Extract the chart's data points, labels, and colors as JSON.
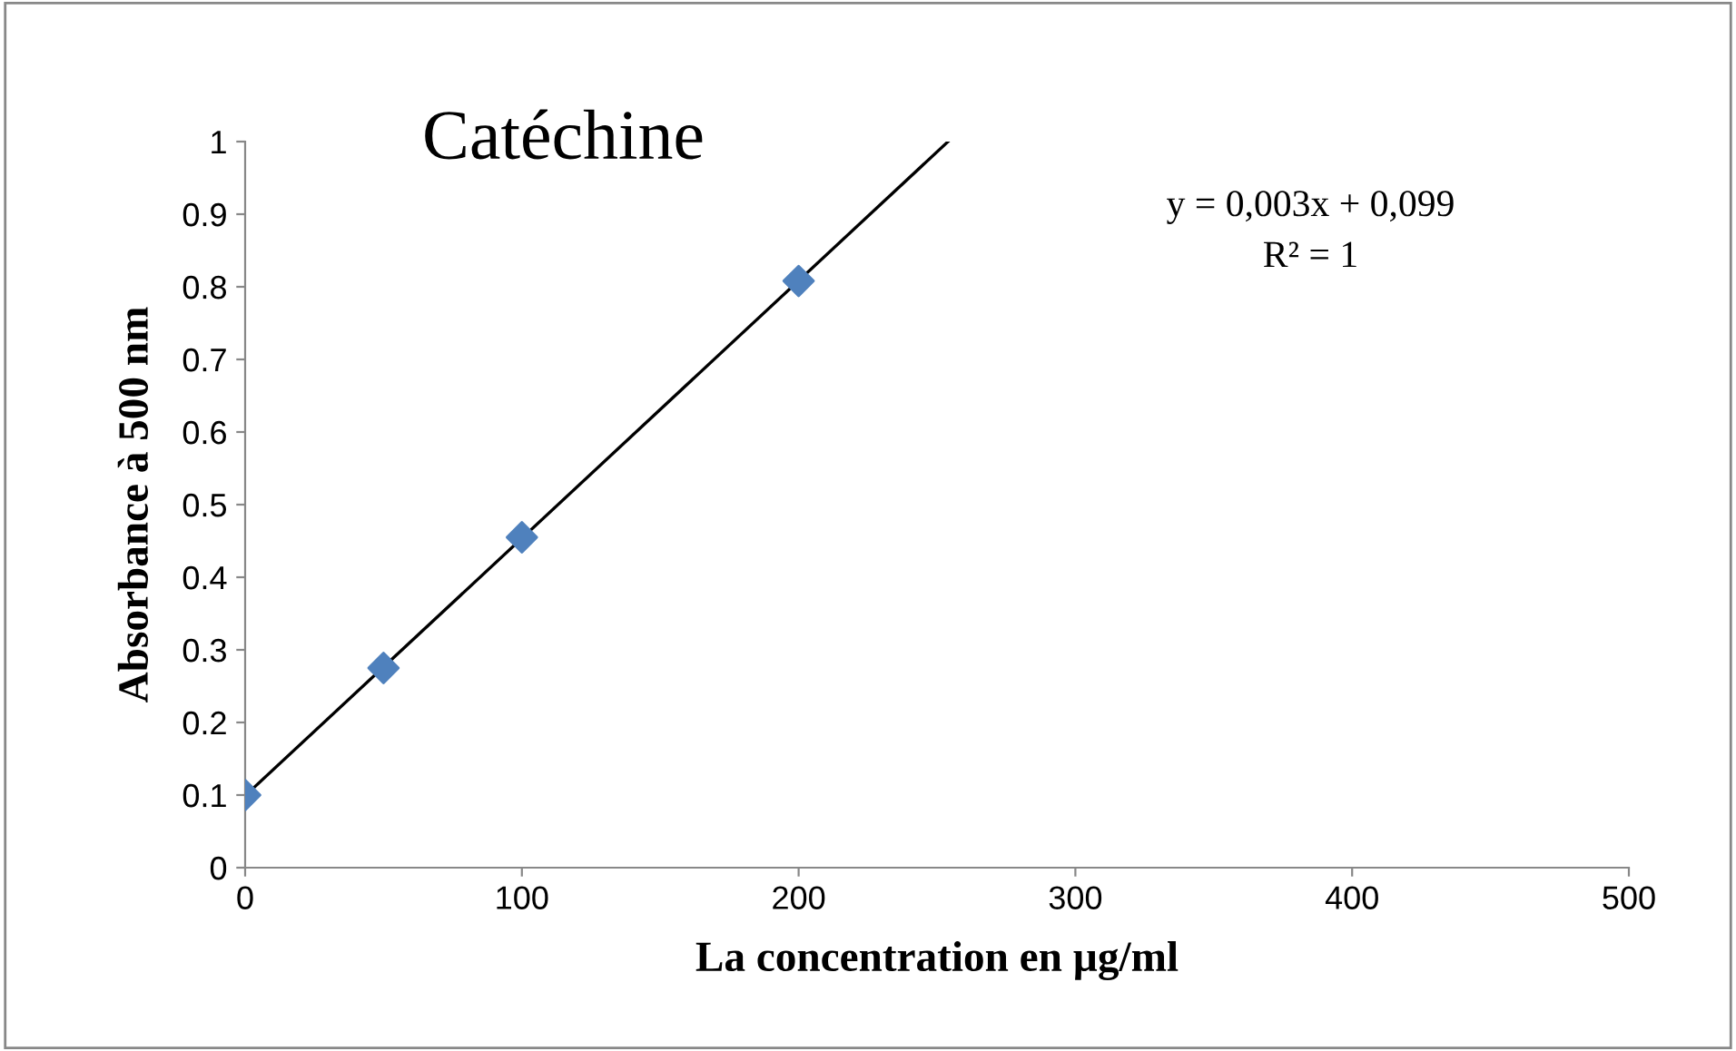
{
  "chart_data": {
    "type": "scatter",
    "title": "Catéchine",
    "xlabel": "La concentration en µg/ml",
    "ylabel": "Absorbance à 500 nm",
    "series": [
      {
        "color": "#4f81bd",
        "marker": "diamond",
        "x": [
          0,
          50,
          100,
          200
        ],
        "values": [
          0.1,
          0.275,
          0.455,
          0.808
        ]
      },
      {
        "type": "line",
        "color": "#000000",
        "marker": "none",
        "line_style": "solid",
        "x": [
          0,
          254
        ],
        "values": [
          0.099,
          1.0
        ]
      }
    ],
    "annotations": [
      "y = 0,003x + 0,099",
      "R² = 1"
    ],
    "xlim": [
      0,
      500
    ],
    "xticks": [
      0,
      100,
      200,
      300,
      400,
      500
    ],
    "ylim": [
      0,
      1
    ],
    "yticks": [
      0,
      0.1,
      0.2,
      0.3,
      0.4,
      0.5,
      0.6,
      0.7,
      0.8,
      0.9,
      1
    ],
    "grid": false,
    "legend": false
  }
}
